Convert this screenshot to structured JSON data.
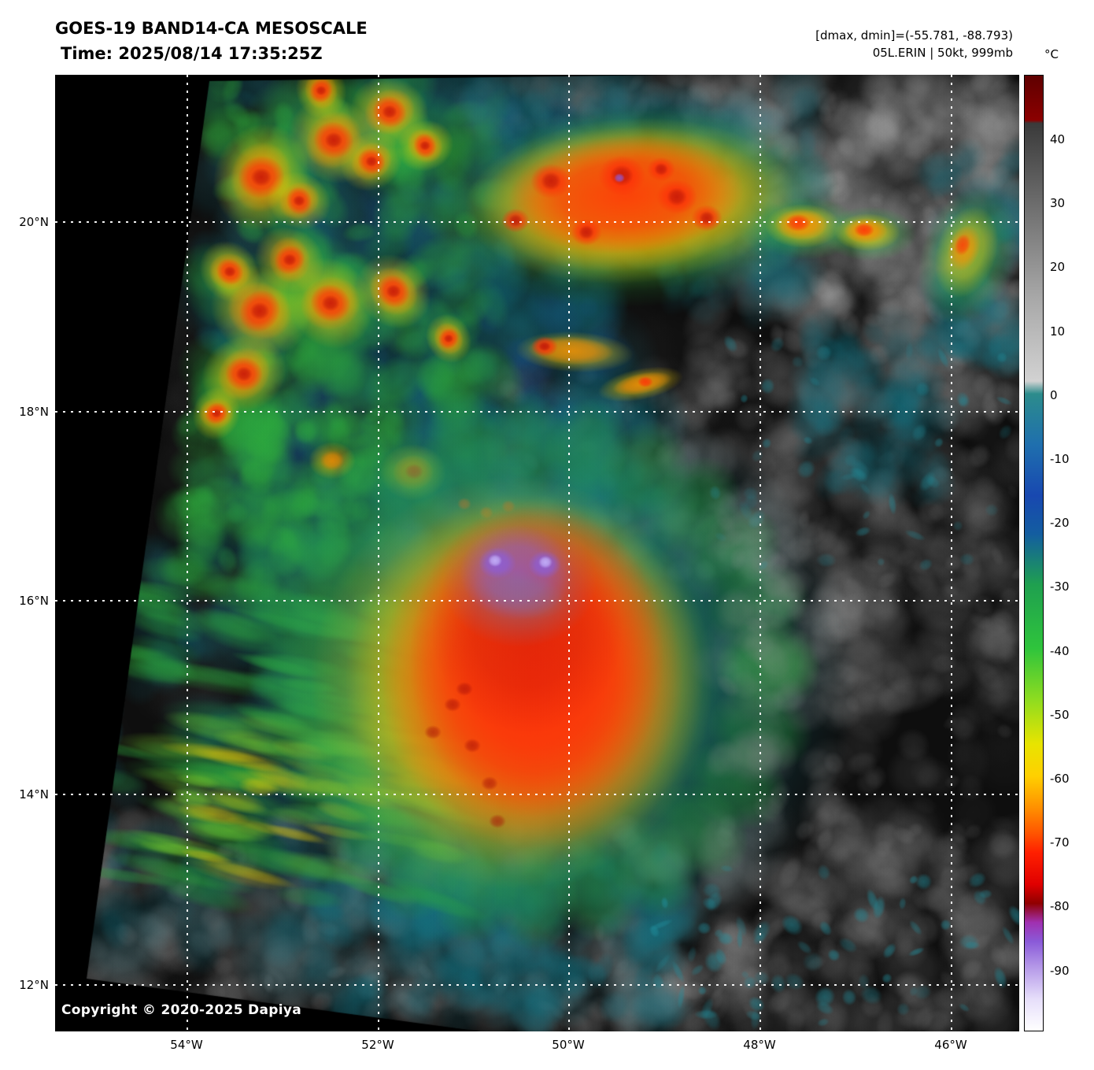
{
  "header": {
    "title": "GOES-19 BAND14-CA MESOSCALE",
    "time": "Time: 2025/08/14 17:35:25Z",
    "range_label": "[dmax, dmin]=(-55.781, -88.793)",
    "storm_label": "05L.ERIN | 50kt, 999mb"
  },
  "colorbar": {
    "unit": "°C",
    "ticks": [
      "40",
      "30",
      "20",
      "10",
      "0",
      "-10",
      "-20",
      "-30",
      "-40",
      "-50",
      "-60",
      "-70",
      "-80",
      "-90"
    ],
    "range": [
      50,
      -100
    ],
    "stops": [
      {
        "t": 50,
        "c": "#5f0000"
      },
      {
        "t": 43,
        "c": "#8b0000"
      },
      {
        "t": 42.5,
        "c": "#3a3a3a"
      },
      {
        "t": 15,
        "c": "#a8a8a8"
      },
      {
        "t": 2,
        "c": "#d2d2d2"
      },
      {
        "t": 0,
        "c": "#2c8c8c"
      },
      {
        "t": -8,
        "c": "#1f6fae"
      },
      {
        "t": -16,
        "c": "#1848b0"
      },
      {
        "t": -22,
        "c": "#135da0"
      },
      {
        "t": -30,
        "c": "#1fa04f"
      },
      {
        "t": -40,
        "c": "#2fc43c"
      },
      {
        "t": -48,
        "c": "#8edc20"
      },
      {
        "t": -55,
        "c": "#e8e400"
      },
      {
        "t": -60,
        "c": "#ffd000"
      },
      {
        "t": -65,
        "c": "#ff9000"
      },
      {
        "t": -69,
        "c": "#ff5500"
      },
      {
        "t": -72,
        "c": "#ff2000"
      },
      {
        "t": -77,
        "c": "#e00000"
      },
      {
        "t": -80,
        "c": "#900000"
      },
      {
        "t": -83,
        "c": "#a030b0"
      },
      {
        "t": -86,
        "c": "#8a5ad8"
      },
      {
        "t": -90,
        "c": "#b498e8"
      },
      {
        "t": -95,
        "c": "#e6defa"
      },
      {
        "t": -100,
        "c": "#ffffff"
      }
    ]
  },
  "map": {
    "lat_labels": [
      "20°N",
      "18°N",
      "16°N",
      "14°N",
      "12°N"
    ],
    "lon_labels": [
      "54°W",
      "52°W",
      "50°W",
      "48°W",
      "46°W"
    ],
    "copyright": "Copyright © 2020-2025 Dapiya"
  }
}
